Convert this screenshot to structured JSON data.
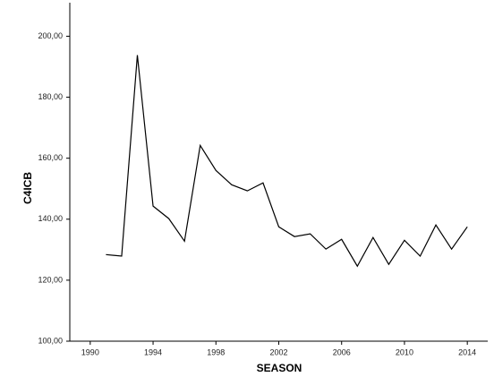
{
  "chart_data": {
    "type": "line",
    "xlabel": "SEASON",
    "ylabel": "C4ICB",
    "x": [
      1991,
      1992,
      1993,
      1994,
      1995,
      1996,
      1997,
      1998,
      1999,
      2000,
      2001,
      2002,
      2003,
      2004,
      2005,
      2006,
      2007,
      2008,
      2009,
      2010,
      2011,
      2012,
      2013,
      2014
    ],
    "values": [
      128.4,
      127.9,
      193.8,
      144.3,
      140.2,
      132.8,
      164.2,
      156.0,
      151.3,
      149.3,
      151.9,
      137.5,
      134.3,
      135.2,
      130.2,
      133.4,
      124.6,
      134.0,
      125.2,
      133.1,
      127.9,
      138.1,
      130.2,
      137.5
    ],
    "color": "#000000",
    "xlim": [
      1988.7,
      2015.3
    ],
    "xticks": [
      1990,
      1994,
      1998,
      2002,
      2006,
      2010,
      2014
    ],
    "ylim": [
      100,
      211
    ],
    "yticks": [
      {
        "value": 100,
        "label": "100,00"
      },
      {
        "value": 120,
        "label": "120,00"
      },
      {
        "value": 140,
        "label": "140,00"
      },
      {
        "value": 160,
        "label": "160,00"
      },
      {
        "value": 180,
        "label": "180,00"
      },
      {
        "value": 200,
        "label": "200,00"
      }
    ]
  }
}
